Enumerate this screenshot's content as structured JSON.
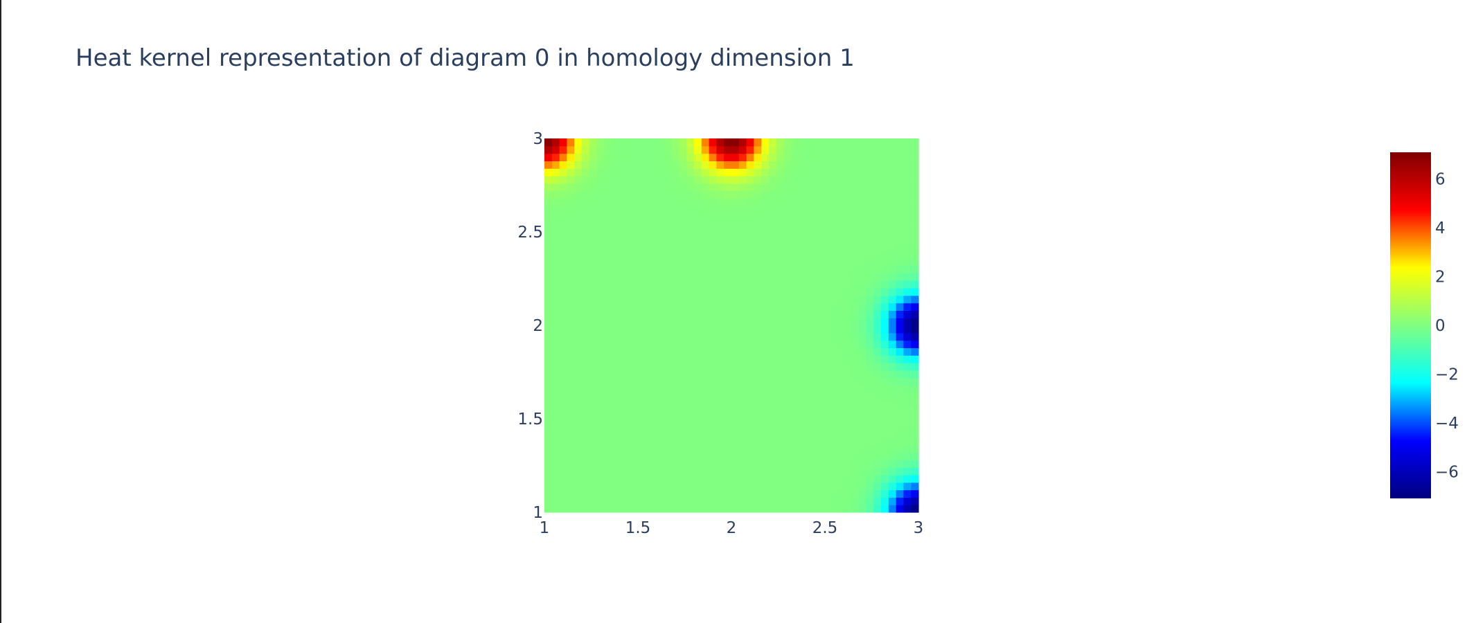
{
  "chart_data": {
    "type": "heatmap",
    "title": "Heat kernel representation of diagram 0 in homology dimension 1",
    "xlabel": "",
    "ylabel": "",
    "xlim": [
      1,
      3
    ],
    "ylim": [
      1,
      3
    ],
    "x_ticks": [
      "1",
      "1.5",
      "2",
      "2.5",
      "3"
    ],
    "y_ticks": [
      "1",
      "1.5",
      "2",
      "2.5",
      "3"
    ],
    "grid_resolution": 50,
    "colorscale": "jet",
    "colorscale_stops": [
      "#00007f",
      "#0000ff",
      "#00ffff",
      "#80ff80",
      "#ffff00",
      "#ff0000",
      "#7f0000"
    ],
    "zlim": [
      -7.1,
      7.1
    ],
    "colorbar_ticks": [
      "6",
      "4",
      "2",
      "0",
      "−2",
      "−4",
      "−6"
    ],
    "colorbar_tick_values": [
      6,
      4,
      2,
      0,
      -2,
      -4,
      -6
    ],
    "blobs": [
      {
        "x": 1.0,
        "y": 3.0,
        "amplitude": 7.1,
        "sigma": 0.12
      },
      {
        "x": 2.0,
        "y": 3.0,
        "amplitude": 7.1,
        "sigma": 0.12
      },
      {
        "x": 3.0,
        "y": 2.0,
        "amplitude": -7.1,
        "sigma": 0.12
      },
      {
        "x": 3.0,
        "y": 1.0,
        "amplitude": -7.1,
        "sigma": 0.12
      }
    ]
  }
}
